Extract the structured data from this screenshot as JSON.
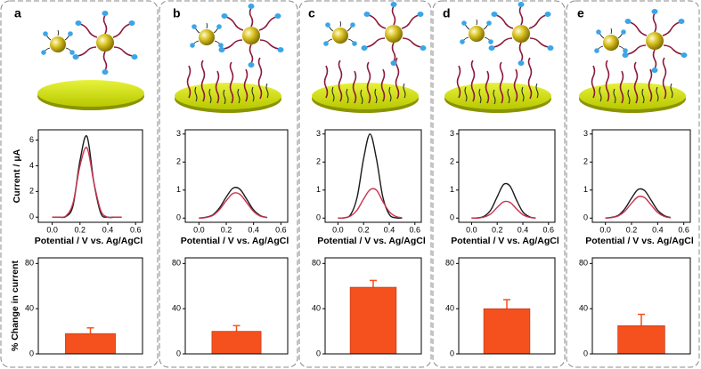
{
  "panel_labels": [
    "a",
    "b",
    "c",
    "d",
    "e"
  ],
  "chart_data": [
    {
      "type": "line",
      "ylabel": "Current / μA",
      "xlabel": "Potential / V vs. Ag/AgCl",
      "x": [
        0,
        0.05,
        0.1,
        0.15,
        0.2,
        0.25,
        0.3,
        0.35,
        0.4,
        0.45,
        0.5
      ],
      "xlim": [
        -0.1,
        0.65
      ],
      "xticks": [
        {
          "value": 0,
          "label": "0.0"
        },
        0.2,
        0.4,
        0.6
      ],
      "ylim": [
        -0.4,
        6.8
      ],
      "yticks": [
        0,
        2,
        4,
        6
      ],
      "series": [
        {
          "color": "#1a1a1a",
          "values": [
            0,
            0,
            0.05,
            0.9,
            4.4,
            6.3,
            2.7,
            0.3,
            0,
            0,
            0
          ]
        },
        {
          "color": "#c8324e",
          "values": [
            0,
            0,
            0.1,
            1.1,
            4.0,
            5.4,
            2.7,
            0.5,
            0,
            0,
            0
          ]
        }
      ]
    },
    {
      "type": "line",
      "xlabel": "Potential / V vs. Ag/AgCl",
      "x": [
        0,
        0.05,
        0.1,
        0.15,
        0.2,
        0.25,
        0.3,
        0.35,
        0.4,
        0.45,
        0.5
      ],
      "xlim": [
        -0.1,
        0.65
      ],
      "xticks": [
        {
          "value": 0,
          "label": "0.0"
        },
        0.2,
        0.4,
        0.6
      ],
      "ylim": [
        -0.15,
        3.15
      ],
      "yticks": [
        0,
        1,
        2,
        3
      ],
      "series": [
        {
          "color": "#1a1a1a",
          "values": [
            0,
            0.03,
            0.11,
            0.36,
            0.75,
            1.07,
            1.03,
            0.67,
            0.29,
            0.09,
            0.02
          ]
        },
        {
          "color": "#c8324e",
          "values": [
            0,
            0.02,
            0.09,
            0.3,
            0.62,
            0.88,
            0.85,
            0.55,
            0.24,
            0.07,
            0.02
          ]
        }
      ]
    },
    {
      "type": "line",
      "xlabel": "Potential / V vs. Ag/AgCl",
      "x": [
        0,
        0.05,
        0.1,
        0.15,
        0.2,
        0.25,
        0.3,
        0.35,
        0.4,
        0.45,
        0.5
      ],
      "xlim": [
        -0.1,
        0.65
      ],
      "xticks": [
        {
          "value": 0,
          "label": "0.0"
        },
        0.2,
        0.4,
        0.6
      ],
      "ylim": [
        -0.15,
        3.15
      ],
      "yticks": [
        0,
        1,
        2,
        3
      ],
      "series": [
        {
          "color": "#1a1a1a",
          "values": [
            0,
            0.01,
            0.13,
            0.75,
            2.12,
            3.0,
            2.12,
            0.75,
            0.13,
            0.01,
            0
          ]
        },
        {
          "color": "#c8324e",
          "values": [
            0,
            0.01,
            0.08,
            0.29,
            0.68,
            1.01,
            1.0,
            0.59,
            0.23,
            0.06,
            0.01
          ]
        }
      ]
    },
    {
      "type": "line",
      "xlabel": "Potential / V vs. Ag/AgCl",
      "x": [
        0,
        0.05,
        0.1,
        0.15,
        0.2,
        0.25,
        0.3,
        0.35,
        0.4,
        0.45,
        0.5
      ],
      "xlim": [
        -0.1,
        0.65
      ],
      "xticks": [
        {
          "value": 0,
          "label": "0.0"
        },
        0.2,
        0.4,
        0.6
      ],
      "ylim": [
        -0.15,
        3.15
      ],
      "yticks": [
        0,
        1,
        2,
        3
      ],
      "series": [
        {
          "color": "#1a1a1a",
          "values": [
            0,
            0.01,
            0.07,
            0.29,
            0.76,
            1.2,
            1.14,
            0.65,
            0.22,
            0.05,
            0
          ]
        },
        {
          "color": "#c8324e",
          "values": [
            0,
            0,
            0.04,
            0.15,
            0.38,
            0.58,
            0.56,
            0.33,
            0.12,
            0.03,
            0
          ]
        }
      ]
    },
    {
      "type": "line",
      "xlabel": "Potential / V vs. Ag/AgCl",
      "x": [
        0,
        0.05,
        0.1,
        0.15,
        0.2,
        0.25,
        0.3,
        0.35,
        0.4,
        0.45,
        0.5
      ],
      "xlim": [
        -0.1,
        0.65
      ],
      "xticks": [
        {
          "value": 0,
          "label": "0.0"
        },
        0.2,
        0.4,
        0.6
      ],
      "ylim": [
        -0.15,
        3.15
      ],
      "yticks": [
        0,
        1,
        2,
        3
      ],
      "series": [
        {
          "color": "#1a1a1a",
          "values": [
            0,
            0.03,
            0.1,
            0.34,
            0.71,
            1.02,
            0.98,
            0.64,
            0.28,
            0.09,
            0.02
          ]
        },
        {
          "color": "#c8324e",
          "values": [
            0,
            0.02,
            0.08,
            0.25,
            0.53,
            0.76,
            0.73,
            0.47,
            0.2,
            0.06,
            0.01
          ]
        }
      ]
    },
    {
      "type": "bar",
      "ylabel": "% Change in current",
      "values": [
        18
      ],
      "errors": [
        5
      ],
      "color": "#f4511e",
      "ylim": [
        0,
        85
      ],
      "yticks": [
        0,
        40,
        80
      ]
    },
    {
      "type": "bar",
      "values": [
        20
      ],
      "errors": [
        5
      ],
      "color": "#f4511e",
      "ylim": [
        0,
        85
      ],
      "yticks": [
        0,
        40,
        80
      ]
    },
    {
      "type": "bar",
      "values": [
        59
      ],
      "errors": [
        6
      ],
      "color": "#f4511e",
      "ylim": [
        0,
        85
      ],
      "yticks": [
        0,
        40,
        80
      ]
    },
    {
      "type": "bar",
      "values": [
        40
      ],
      "errors": [
        8
      ],
      "color": "#f4511e",
      "ylim": [
        0,
        85
      ],
      "yticks": [
        0,
        40,
        80
      ]
    },
    {
      "type": "bar",
      "values": [
        25
      ],
      "errors": [
        10
      ],
      "color": "#f4511e",
      "ylim": [
        0,
        85
      ],
      "yticks": [
        0,
        40,
        80
      ]
    }
  ]
}
